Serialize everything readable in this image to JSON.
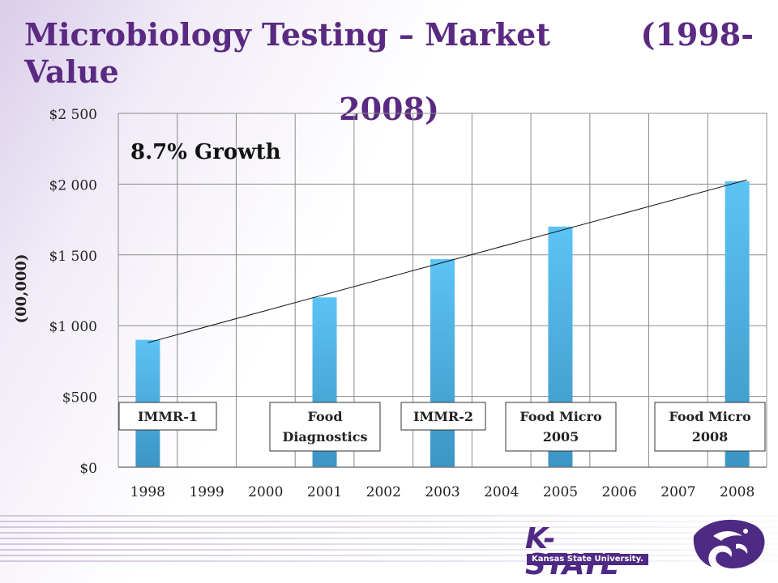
{
  "slide": {
    "title_line1_left": "Microbiology Testing – Market Value",
    "title_line1_right": "(1998-",
    "title_line2": "2008)"
  },
  "logo": {
    "wordmark": "K-STATE",
    "subtext": "Kansas State University."
  },
  "chart_data": {
    "type": "bar",
    "categories": [
      "1998",
      "1999",
      "2000",
      "2001",
      "2002",
      "2003",
      "2004",
      "2005",
      "2006",
      "2007",
      "2008"
    ],
    "series": [
      {
        "values": [
          900,
          null,
          null,
          1200,
          null,
          1470,
          null,
          1700,
          null,
          null,
          2020
        ]
      }
    ],
    "ylabel": "(00,000)",
    "ylim": [
      0,
      2500
    ],
    "yticks": [
      0,
      500,
      1000,
      1500,
      2000,
      2500
    ],
    "ytick_labels": [
      "$0",
      "$500",
      "$1 000",
      "$1 500",
      "$2 000",
      "$2 500"
    ],
    "grid": true,
    "bar_color": "#4db3ee",
    "trendline": {
      "from": [
        "1998",
        880
      ],
      "to": [
        "2008",
        2030
      ]
    },
    "annotations": {
      "growth": "8.7% Growth",
      "events": [
        {
          "label": "IMMR-1",
          "year": "1998"
        },
        {
          "label": "Food Diagnostics",
          "year": "2001"
        },
        {
          "label": "IMMR-2",
          "year": "2003"
        },
        {
          "label": "Food Micro 2005",
          "year": "2005"
        },
        {
          "label": "Food Micro 2008",
          "year": "2008"
        }
      ]
    }
  }
}
